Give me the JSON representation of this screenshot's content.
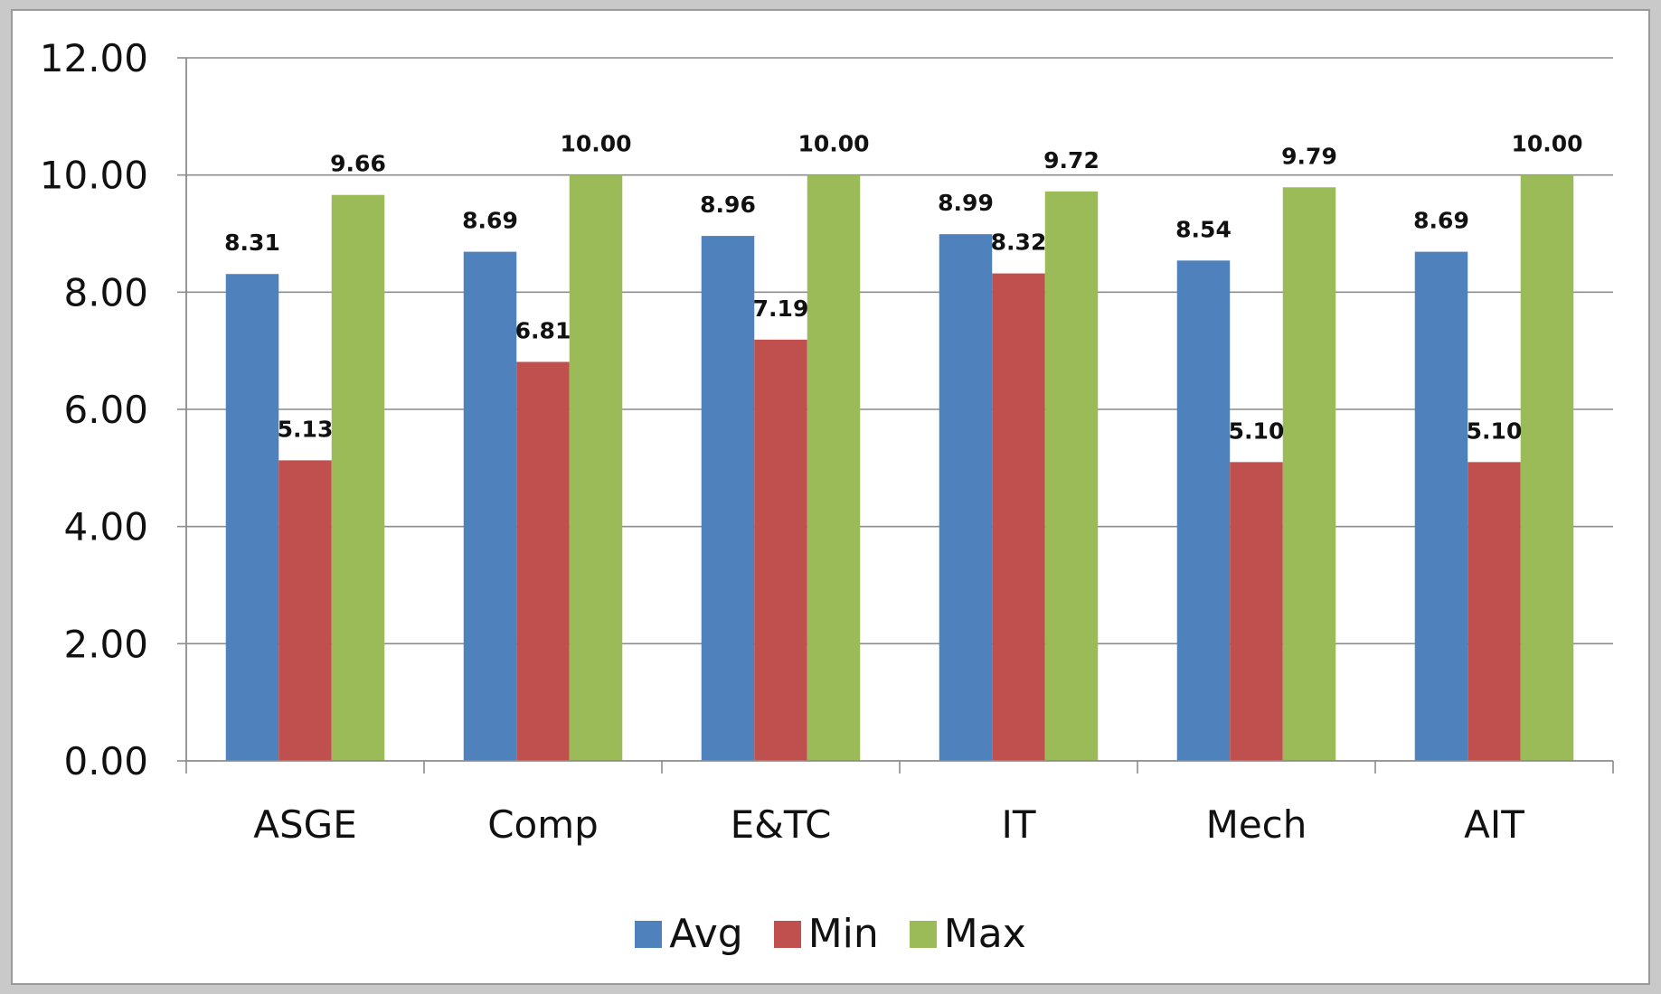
{
  "colors": {
    "avg": "#4F81BD",
    "min": "#C0504D",
    "max": "#9BBB59"
  },
  "chart_data": {
    "type": "bar",
    "categories": [
      "ASGE",
      "Comp",
      "E&TC",
      "IT",
      "Mech",
      "AIT"
    ],
    "series": [
      {
        "name": "Avg",
        "color": "#4F81BD",
        "values": [
          8.31,
          8.69,
          8.96,
          8.99,
          8.54,
          8.69
        ],
        "labels": [
          "8.31",
          "8.69",
          "8.96",
          "8.99",
          "8.54",
          "8.69"
        ]
      },
      {
        "name": "Min",
        "color": "#C0504D",
        "values": [
          5.13,
          6.81,
          7.19,
          8.32,
          5.1,
          5.1
        ],
        "labels": [
          "5.13",
          "6.81",
          "7.19",
          "8.32",
          "5.10",
          "5.10"
        ]
      },
      {
        "name": "Max",
        "color": "#9BBB59",
        "values": [
          9.66,
          10.0,
          10.0,
          9.72,
          9.79,
          10.0
        ],
        "labels": [
          "9.66",
          "10.00",
          "10.00",
          "9.72",
          "9.79",
          "10.00"
        ]
      }
    ],
    "y_ticks": [
      "0.00",
      "2.00",
      "4.00",
      "6.00",
      "8.00",
      "10.00",
      "12.00"
    ],
    "ylim": [
      0,
      12
    ],
    "grid": true,
    "legend_position": "bottom"
  }
}
